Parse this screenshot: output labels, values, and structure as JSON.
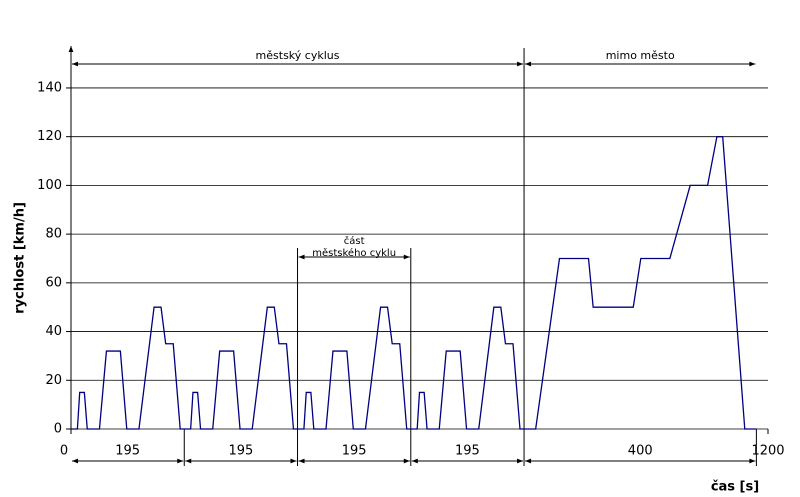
{
  "chart_data": {
    "type": "line",
    "x_label": "čas [s]",
    "y_label": "rychlost [km/h]",
    "x": [
      0,
      11,
      15,
      23,
      28,
      49,
      61,
      85,
      96,
      117,
      143,
      155,
      163,
      176,
      188,
      195,
      195,
      206,
      210,
      218,
      223,
      244,
      256,
      280,
      291,
      312,
      338,
      350,
      358,
      371,
      383,
      390,
      390,
      401,
      405,
      413,
      418,
      439,
      451,
      475,
      486,
      507,
      533,
      545,
      553,
      566,
      578,
      585,
      585,
      596,
      600,
      608,
      613,
      634,
      646,
      670,
      681,
      702,
      728,
      740,
      748,
      761,
      773,
      780,
      800,
      841,
      891,
      899,
      968,
      981,
      1031,
      1066,
      1096,
      1112,
      1122,
      1160,
      1180
    ],
    "values": [
      0,
      0,
      15,
      15,
      0,
      0,
      32,
      32,
      0,
      0,
      50,
      50,
      35,
      35,
      0,
      0,
      0,
      0,
      15,
      15,
      0,
      0,
      32,
      32,
      0,
      0,
      50,
      50,
      35,
      35,
      0,
      0,
      0,
      0,
      15,
      15,
      0,
      0,
      32,
      32,
      0,
      0,
      50,
      50,
      35,
      35,
      0,
      0,
      0,
      0,
      15,
      15,
      0,
      0,
      32,
      32,
      0,
      0,
      50,
      50,
      35,
      35,
      0,
      0,
      0,
      70,
      70,
      50,
      50,
      70,
      70,
      100,
      100,
      120,
      120,
      0,
      0
    ],
    "color": "#000080",
    "xlim": [
      0,
      1200
    ],
    "xticks": [
      0,
      1200
    ],
    "ylim": [
      0,
      150
    ],
    "yticks": [
      0,
      20,
      40,
      60,
      80,
      100,
      120,
      140
    ],
    "grid": true,
    "segments": [
      195,
      195,
      195,
      195,
      400
    ],
    "urban_label": "městský cyklus",
    "extra_urban_label": "mimo město",
    "part_label": [
      "část",
      "městského cyklu"
    ]
  }
}
